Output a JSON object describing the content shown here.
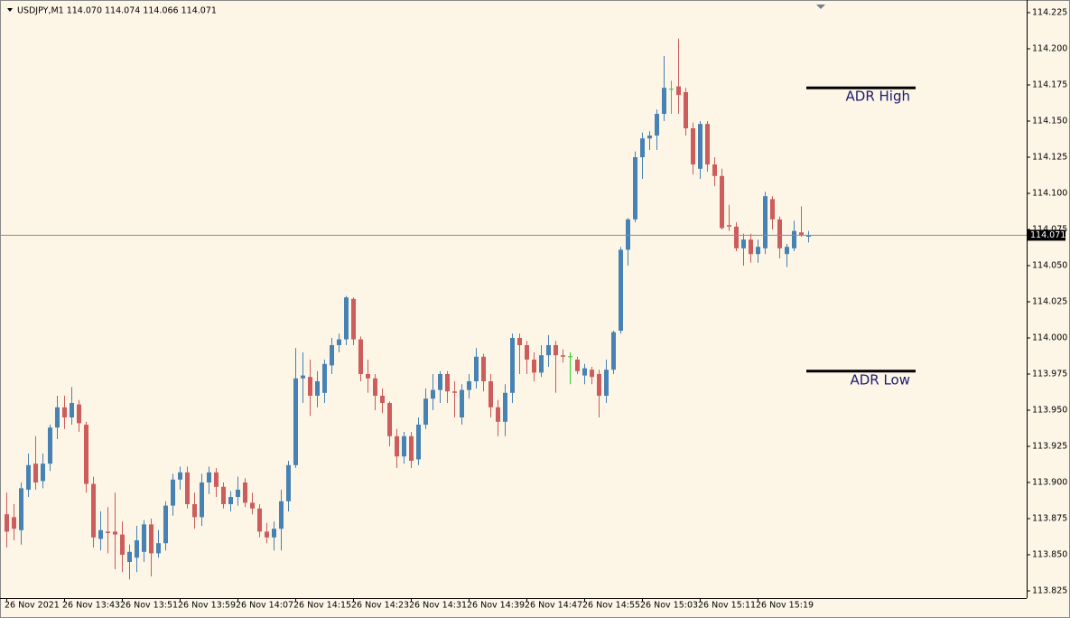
{
  "chart_data": {
    "type": "candlestick",
    "title": "USDJPY,M1  114.070 114.074 114.066 114.071",
    "categories": [
      "26 Nov 2021",
      null,
      null,
      null,
      null,
      null,
      null,
      null,
      "26 Nov 13:43",
      null,
      null,
      null,
      null,
      null,
      null,
      null,
      "26 Nov 13:51",
      null,
      null,
      null,
      null,
      null,
      null,
      null,
      "26 Nov 13:59",
      null,
      null,
      null,
      null,
      null,
      null,
      null,
      "26 Nov 14:07",
      null,
      null,
      null,
      null,
      null,
      null,
      null,
      "26 Nov 14:15",
      null,
      null,
      null,
      null,
      null,
      null,
      null,
      "26 Nov 14:23",
      null,
      null,
      null,
      null,
      null,
      null,
      null,
      "26 Nov 14:31",
      null,
      null,
      null,
      null,
      null,
      null,
      null,
      "26 Nov 14:39",
      null,
      null,
      null,
      null,
      null,
      null,
      null,
      "26 Nov 14:47",
      null,
      null,
      null,
      null,
      null,
      null,
      null,
      "26 Nov 14:55",
      null,
      null,
      null,
      null,
      null,
      null,
      null,
      "26 Nov 15:03",
      null,
      null,
      null,
      null,
      null,
      null,
      null,
      "26 Nov 15:11",
      null,
      null,
      null,
      null,
      null,
      null,
      null,
      "26 Nov 15:19",
      null,
      null,
      null,
      null,
      null,
      null,
      null
    ],
    "open": [
      113.878,
      113.876,
      113.867,
      113.895,
      113.913,
      113.901,
      113.913,
      113.938,
      113.952,
      113.945,
      113.954,
      113.94,
      113.899,
      113.861,
      113.866,
      113.866,
      113.864,
      113.845,
      113.848,
      113.852,
      113.871,
      113.851,
      113.858,
      113.884,
      113.902,
      113.907,
      113.885,
      113.876,
      113.9,
      113.907,
      113.897,
      113.885,
      113.89,
      113.9,
      113.886,
      113.882,
      113.866,
      113.862,
      113.868,
      113.887,
      113.912,
      113.972,
      113.973,
      113.96,
      113.962,
      113.981,
      113.995,
      113.999,
      114.027,
      113.999,
      113.975,
      113.972,
      113.96,
      113.955,
      113.932,
      113.918,
      113.932,
      113.916,
      113.94,
      113.958,
      113.964,
      113.975,
      113.963,
      113.945,
      113.964,
      113.97,
      113.987,
      113.97,
      113.952,
      113.942,
      113.962,
      114.0,
      113.995,
      113.985,
      113.976,
      113.988,
      113.995,
      113.988,
      113.987,
      113.985,
      113.974,
      113.978,
      113.975,
      113.96,
      113.978,
      114.005,
      114.061,
      114.082,
      114.125,
      114.138,
      114.14,
      114.155,
      114.172,
      114.174,
      114.17,
      114.145,
      114.117,
      114.148,
      114.12,
      114.112,
      114.078,
      114.077,
      114.062,
      114.068,
      114.058,
      114.062,
      114.096,
      114.082,
      114.058,
      114.062,
      114.073,
      114.07
    ],
    "high": [
      113.893,
      113.885,
      113.9,
      113.92,
      113.932,
      113.92,
      113.94,
      113.96,
      113.96,
      113.966,
      113.957,
      113.942,
      113.904,
      113.88,
      113.883,
      113.893,
      113.873,
      113.857,
      113.87,
      113.874,
      113.875,
      113.867,
      113.887,
      113.906,
      113.911,
      113.911,
      113.893,
      113.906,
      113.911,
      113.91,
      113.9,
      113.894,
      113.904,
      113.903,
      113.893,
      113.885,
      113.872,
      113.873,
      113.895,
      113.915,
      113.993,
      113.99,
      113.985,
      113.977,
      113.985,
      114.0,
      114.003,
      114.029,
      114.028,
      114.001,
      113.985,
      113.975,
      113.965,
      113.956,
      113.937,
      113.935,
      113.935,
      113.945,
      113.965,
      113.975,
      113.977,
      113.977,
      113.97,
      113.968,
      113.975,
      113.993,
      113.989,
      113.975,
      113.957,
      113.968,
      114.003,
      114.003,
      113.998,
      113.99,
      113.995,
      114.002,
      113.998,
      113.992,
      113.99,
      113.987,
      113.982,
      113.98,
      113.978,
      113.985,
      114.005,
      114.063,
      114.083,
      114.129,
      114.142,
      114.143,
      114.158,
      114.195,
      114.178,
      114.207,
      114.173,
      114.149,
      114.15,
      114.15,
      114.125,
      114.117,
      114.092,
      114.08,
      114.072,
      114.072,
      114.068,
      114.101,
      114.098,
      114.084,
      114.065,
      114.081,
      114.091,
      114.074
    ],
    "low": [
      113.855,
      113.86,
      113.857,
      113.89,
      113.895,
      113.896,
      113.908,
      113.93,
      113.937,
      113.94,
      113.935,
      113.893,
      113.855,
      113.853,
      113.851,
      113.84,
      113.838,
      113.833,
      113.838,
      113.845,
      113.835,
      113.848,
      113.853,
      113.877,
      113.895,
      113.882,
      113.868,
      113.87,
      113.892,
      113.89,
      113.882,
      113.88,
      113.884,
      113.883,
      113.878,
      113.862,
      113.858,
      113.853,
      113.853,
      113.88,
      113.91,
      113.955,
      113.946,
      113.952,
      113.955,
      113.975,
      113.99,
      113.995,
      113.995,
      113.97,
      113.962,
      113.95,
      113.948,
      113.925,
      113.91,
      113.913,
      113.91,
      113.912,
      113.937,
      113.95,
      113.955,
      113.955,
      113.945,
      113.94,
      113.958,
      113.965,
      113.963,
      113.945,
      113.932,
      113.932,
      113.955,
      113.975,
      113.975,
      113.97,
      113.973,
      113.98,
      113.962,
      113.983,
      113.968,
      113.975,
      113.968,
      113.968,
      113.945,
      113.955,
      113.975,
      114.003,
      114.05,
      114.08,
      114.11,
      114.13,
      114.13,
      114.15,
      114.155,
      114.155,
      114.14,
      114.113,
      114.11,
      114.115,
      114.105,
      114.075,
      114.074,
      114.06,
      114.05,
      114.052,
      114.052,
      114.058,
      114.075,
      114.055,
      114.049,
      114.06,
      114.07,
      114.066
    ],
    "close": [
      113.866,
      113.868,
      113.896,
      113.912,
      113.9,
      113.913,
      113.938,
      113.952,
      113.945,
      113.955,
      113.941,
      113.899,
      113.862,
      113.867,
      113.865,
      113.864,
      113.85,
      113.852,
      113.86,
      113.871,
      113.851,
      113.858,
      113.884,
      113.902,
      113.907,
      113.885,
      113.876,
      113.9,
      113.907,
      113.897,
      113.885,
      113.89,
      113.895,
      113.886,
      113.882,
      113.866,
      113.862,
      113.868,
      113.887,
      113.912,
      113.972,
      113.974,
      113.96,
      113.97,
      113.982,
      113.995,
      113.999,
      114.028,
      113.999,
      113.975,
      113.972,
      113.96,
      113.955,
      113.932,
      113.918,
      113.932,
      113.915,
      113.94,
      113.958,
      113.964,
      113.975,
      113.963,
      113.962,
      113.964,
      113.97,
      113.987,
      113.97,
      113.952,
      113.942,
      113.962,
      114.0,
      113.995,
      113.985,
      113.976,
      113.988,
      113.995,
      113.988,
      113.987,
      113.987,
      113.977,
      113.979,
      113.973,
      113.96,
      113.978,
      114.004,
      114.061,
      114.082,
      114.125,
      114.138,
      114.14,
      114.155,
      114.173,
      114.172,
      114.168,
      114.145,
      114.12,
      114.148,
      114.12,
      114.112,
      114.076,
      114.077,
      114.062,
      114.068,
      114.058,
      114.063,
      114.098,
      114.082,
      114.062,
      114.063,
      114.074,
      114.071,
      114.071
    ],
    "up_color": "#4682b4",
    "down_color": "#cd5c5c",
    "doji_color": "#32cd32",
    "ylim": [
      113.82,
      114.226
    ],
    "yticks": [
      114.225,
      {
        "value": 114.2,
        "label": "114.200"
      },
      114.175,
      {
        "value": 114.15,
        "label": "114.150"
      },
      114.125,
      {
        "value": 114.1,
        "label": "114.100"
      },
      114.075,
      {
        "value": 114.05,
        "label": "114.050"
      },
      114.025,
      {
        "value": 114,
        "label": "114.000"
      },
      113.975,
      {
        "value": 113.95,
        "label": "113.950"
      },
      113.925,
      {
        "value": 113.9,
        "label": "113.900"
      },
      113.875,
      {
        "value": 113.85,
        "label": "113.850"
      },
      113.825
    ],
    "grid": false,
    "last_price": {
      "value": 114.071,
      "label": "114.071"
    },
    "levels": [
      {
        "label": "ADR High",
        "value": 114.173
      },
      {
        "label": "ADR Low",
        "value": 113.977
      }
    ]
  }
}
